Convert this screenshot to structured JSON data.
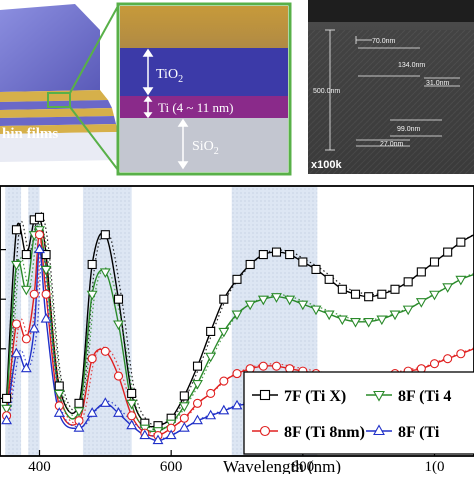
{
  "panels": {
    "stack": {
      "caption": "hin films",
      "layer_colors": {
        "tio2": "#6a68c8",
        "ti": "#d8b24a",
        "sio2": "#e8eaf2"
      }
    },
    "zoom": {
      "tio2_label": "TiO",
      "tio2_sub": "2",
      "ti_label": "Ti (4 ~ 11 nm)",
      "sio2_label": "SiO",
      "sio2_sub": "2",
      "border_color": "#58b048"
    },
    "sem": {
      "magnification": "x100k",
      "measurements": [
        "70.0nm",
        "134.0nm",
        "500.0nm",
        "31.0nm",
        "99.0nm",
        "27.0nm"
      ]
    }
  },
  "chart_data": {
    "type": "line",
    "xlabel": "Wavelength (nm)",
    "ylabel": "",
    "xlim": [
      340,
      1060
    ],
    "ylim": [
      0,
      1
    ],
    "x_ticks": [
      400,
      600,
      800,
      1000
    ],
    "x_tick_labels": [
      "400",
      "600",
      "800",
      "1(0"
    ],
    "shaded_bands": [
      [
        348,
        372
      ],
      [
        383,
        400
      ],
      [
        466,
        540
      ],
      [
        692,
        822
      ]
    ],
    "series": [
      {
        "name": "7F (Ti X)",
        "color": "#000000",
        "marker": "square",
        "x": [
          350,
          365,
          380,
          392,
          400,
          410,
          430,
          460,
          480,
          500,
          520,
          540,
          560,
          580,
          600,
          620,
          640,
          660,
          680,
          700,
          720,
          740,
          760,
          780,
          800,
          820,
          840,
          860,
          880,
          900,
          920,
          940,
          960,
          980,
          1000,
          1020,
          1040,
          1060
        ],
        "y": [
          0.2,
          0.88,
          0.78,
          0.92,
          0.93,
          0.78,
          0.25,
          0.18,
          0.74,
          0.86,
          0.6,
          0.22,
          0.1,
          0.09,
          0.12,
          0.21,
          0.33,
          0.47,
          0.6,
          0.68,
          0.74,
          0.78,
          0.79,
          0.78,
          0.75,
          0.72,
          0.68,
          0.64,
          0.62,
          0.61,
          0.62,
          0.64,
          0.67,
          0.71,
          0.75,
          0.79,
          0.83,
          0.86
        ]
      },
      {
        "name": "8F (Ti 4",
        "color": "#2a8a2a",
        "marker": "triangle-down",
        "x": [
          350,
          365,
          380,
          392,
          400,
          410,
          430,
          460,
          480,
          500,
          520,
          540,
          560,
          580,
          600,
          620,
          640,
          660,
          680,
          700,
          720,
          740,
          760,
          780,
          800,
          820,
          840,
          860,
          880,
          900,
          920,
          940,
          960,
          980,
          1000,
          1020,
          1040,
          1060
        ],
        "y": [
          0.16,
          0.74,
          0.64,
          0.86,
          0.88,
          0.72,
          0.22,
          0.15,
          0.62,
          0.71,
          0.5,
          0.18,
          0.08,
          0.07,
          0.1,
          0.17,
          0.26,
          0.37,
          0.47,
          0.54,
          0.58,
          0.6,
          0.61,
          0.6,
          0.58,
          0.56,
          0.54,
          0.52,
          0.51,
          0.51,
          0.52,
          0.54,
          0.56,
          0.59,
          0.62,
          0.65,
          0.68,
          0.7
        ]
      },
      {
        "name": "8F (Ti 8nm)",
        "color": "#e02020",
        "marker": "circle",
        "x": [
          350,
          365,
          380,
          392,
          400,
          410,
          430,
          460,
          480,
          500,
          520,
          540,
          560,
          580,
          600,
          620,
          640,
          660,
          680,
          700,
          720,
          740,
          760,
          780,
          800,
          820,
          840,
          860,
          880,
          900,
          920,
          940,
          960,
          980,
          1000,
          1020,
          1040,
          1060
        ],
        "y": [
          0.13,
          0.5,
          0.44,
          0.62,
          0.86,
          0.62,
          0.17,
          0.11,
          0.36,
          0.39,
          0.29,
          0.13,
          0.06,
          0.05,
          0.08,
          0.12,
          0.18,
          0.22,
          0.27,
          0.3,
          0.32,
          0.33,
          0.33,
          0.32,
          0.31,
          0.3,
          0.29,
          0.28,
          0.28,
          0.28,
          0.29,
          0.3,
          0.31,
          0.32,
          0.34,
          0.36,
          0.38,
          0.4
        ]
      },
      {
        "name": "8F (Ti",
        "color": "#2030c8",
        "marker": "triangle-up",
        "x": [
          350,
          365,
          380,
          392,
          400,
          410,
          430,
          460,
          480,
          500,
          520,
          540,
          560,
          580,
          600,
          620,
          640,
          660,
          680,
          700,
          720,
          740,
          760,
          780,
          800,
          820,
          840,
          860,
          880,
          900,
          920,
          940,
          960,
          980,
          1000,
          1020,
          1040,
          1060
        ],
        "y": [
          0.11,
          0.38,
          0.32,
          0.48,
          0.8,
          0.52,
          0.14,
          0.08,
          0.14,
          0.18,
          0.14,
          0.09,
          0.05,
          0.03,
          0.05,
          0.08,
          0.11,
          0.13,
          0.15,
          0.17,
          0.18,
          0.19,
          0.19,
          0.19,
          0.18,
          0.18,
          0.17,
          0.17,
          0.17,
          0.17,
          0.18,
          0.18,
          0.19,
          0.2,
          0.21,
          0.22,
          0.23,
          0.24
        ]
      }
    ],
    "legend": {
      "position": "bottom-right",
      "columns": 2
    }
  }
}
